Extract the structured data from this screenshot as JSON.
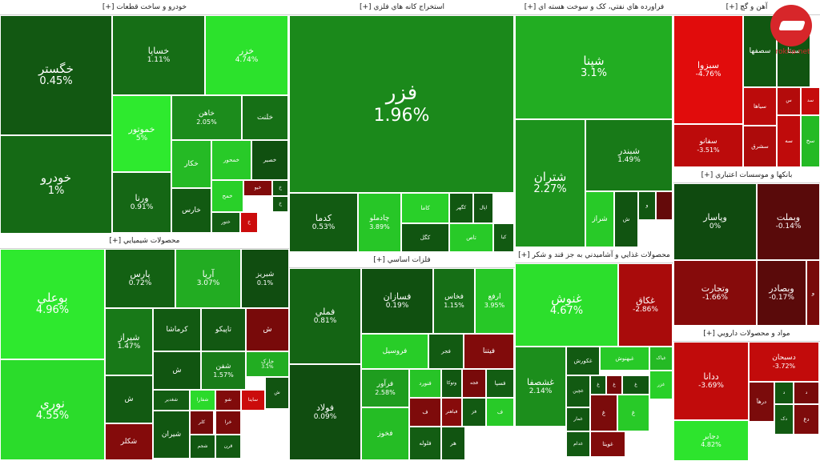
{
  "chart_data": {
    "type": "treemap",
    "title": "",
    "color_scale": {
      "positive": "#2eea2e",
      "negative": "#e80c0c",
      "neutral": "#0f4a0f"
    },
    "sectors": [
      {
        "name": "خودرو و ساخت قطعات [+]",
        "tiles": [
          {
            "name": "خگستر",
            "value": "0.45%",
            "pct": 0.45
          },
          {
            "name": "خودرو",
            "value": "1%",
            "pct": 1
          },
          {
            "name": "خساپا",
            "value": "1.11%",
            "pct": 1.11
          },
          {
            "name": "خزر",
            "value": "4.74%",
            "pct": 4.74
          },
          {
            "name": "خموتور",
            "value": "5%",
            "pct": 5
          },
          {
            "name": "خاهن",
            "value": "2.05%",
            "pct": 2.05
          },
          {
            "name": "خلنت",
            "value": "",
            "pct": 1.2
          },
          {
            "name": "ورنا",
            "value": "0.91%",
            "pct": 0.91
          },
          {
            "name": "خکار",
            "value": "",
            "pct": 3.5
          },
          {
            "name": "خمحور",
            "value": "",
            "pct": 4
          },
          {
            "name": "خصیر",
            "value": "",
            "pct": 0.2
          },
          {
            "name": "خمح",
            "value": "",
            "pct": 4.2
          },
          {
            "name": "خیو",
            "value": "",
            "pct": -1.5
          },
          {
            "name": "خ",
            "value": "",
            "pct": 0.3
          },
          {
            "name": "خارس",
            "value": "",
            "pct": 0.5
          },
          {
            "name": "ختور",
            "value": "",
            "pct": 0.6
          },
          {
            "name": "خ",
            "value": "",
            "pct": -4
          },
          {
            "name": "خ",
            "value": "",
            "pct": 0.4
          }
        ]
      },
      {
        "name": "استخراج کانه هاي فلزي [+]",
        "tiles": [
          {
            "name": "فزر",
            "value": "1.96%",
            "pct": 1.96
          },
          {
            "name": "کدما",
            "value": "0.53%",
            "pct": 0.53
          },
          {
            "name": "چادملو",
            "value": "3.89%",
            "pct": 3.89
          },
          {
            "name": "کاما",
            "value": "",
            "pct": 4.2
          },
          {
            "name": "کگهر",
            "value": "",
            "pct": 0.4
          },
          {
            "name": "اپال",
            "value": "",
            "pct": 0.3
          },
          {
            "name": "کگل",
            "value": "",
            "pct": 0.35
          },
          {
            "name": "تاص",
            "value": "",
            "pct": 4
          },
          {
            "name": "کبا",
            "value": "",
            "pct": 0.5
          }
        ]
      },
      {
        "name": "فراورده هاي نفتي، کک و سوخت هسته اي [+]",
        "tiles": [
          {
            "name": "شپنا",
            "value": "3.1%",
            "pct": 3.1
          },
          {
            "name": "شتران",
            "value": "2.27%",
            "pct": 2.27
          },
          {
            "name": "شبندر",
            "value": "1.49%",
            "pct": 1.49
          },
          {
            "name": "شراز",
            "value": "",
            "pct": 4
          },
          {
            "name": "ش",
            "value": "",
            "pct": 0.3
          },
          {
            "name": "و",
            "value": "",
            "pct": 0.4
          },
          {
            "name": "",
            "value": "",
            "pct": -0.5
          }
        ]
      },
      {
        "name": "آهن و گچ [+]",
        "tiles": [
          {
            "name": "سبزوا",
            "value": "-4.76%",
            "pct": -4.76
          },
          {
            "name": "سفانو",
            "value": "-3.51%",
            "pct": -3.51
          },
          {
            "name": "سصفها",
            "value": "",
            "pct": 0.4
          },
          {
            "name": "سیتا",
            "value": "",
            "pct": 0.3
          },
          {
            "name": "سیاها",
            "value": "",
            "pct": -3.5
          },
          {
            "name": "س",
            "value": "",
            "pct": -3.2
          },
          {
            "name": "سد",
            "value": "",
            "pct": -3.8
          },
          {
            "name": "سشرق",
            "value": "",
            "pct": -3
          },
          {
            "name": "سه",
            "value": "",
            "pct": -3.6
          },
          {
            "name": "سخ",
            "value": "",
            "pct": 3.5
          }
        ]
      },
      {
        "name": "محصولات شيميايي [+]",
        "tiles": [
          {
            "name": "بوعلي",
            "value": "4.96%",
            "pct": 4.96
          },
          {
            "name": "نوري",
            "value": "4.55%",
            "pct": 4.55
          },
          {
            "name": "پارس",
            "value": "0.72%",
            "pct": 0.72
          },
          {
            "name": "آریا",
            "value": "3.07%",
            "pct": 3.07
          },
          {
            "name": "شبریز",
            "value": "0.1%",
            "pct": 0.1
          },
          {
            "name": "شیراز",
            "value": "1.47%",
            "pct": 1.47
          },
          {
            "name": "کرماشا",
            "value": "",
            "pct": 0.5
          },
          {
            "name": "تاپیکو",
            "value": "",
            "pct": 0.45
          },
          {
            "name": "ش",
            "value": "",
            "pct": -1.2
          },
          {
            "name": "ش",
            "value": "",
            "pct": 0.5
          },
          {
            "name": "ش",
            "value": "",
            "pct": 0.35
          },
          {
            "name": "شفن",
            "value": "1.57%",
            "pct": 1.57
          },
          {
            "name": "خارک",
            "value": "3.1%",
            "pct": 3.1
          },
          {
            "name": "شغدیر",
            "value": "",
            "pct": 0.6
          },
          {
            "name": "شفارا",
            "value": "",
            "pct": 4.5
          },
          {
            "name": "شو",
            "value": "",
            "pct": -1.5
          },
          {
            "name": "ساینا",
            "value": "",
            "pct": -4
          },
          {
            "name": "ش",
            "value": "",
            "pct": 0.3
          },
          {
            "name": "شیران",
            "value": "",
            "pct": 0.4
          },
          {
            "name": "کلر",
            "value": "",
            "pct": -1.1
          },
          {
            "name": "خرا",
            "value": "",
            "pct": -1.3
          },
          {
            "name": "قرن",
            "value": "",
            "pct": 0.5
          },
          {
            "name": "شجم",
            "value": "",
            "pct": 0.4
          },
          {
            "name": "شکلر",
            "value": "",
            "pct": -1.6
          }
        ]
      },
      {
        "name": "فلزات اساسي [+]",
        "tiles": [
          {
            "name": "فملي",
            "value": "0.81%",
            "pct": 0.81
          },
          {
            "name": "فولاد",
            "value": "0.09%",
            "pct": 0.09
          },
          {
            "name": "فسازان",
            "value": "0.19%",
            "pct": 0.19
          },
          {
            "name": "فخاس",
            "value": "1.15%",
            "pct": 1.15
          },
          {
            "name": "ارفع",
            "value": "3.95%",
            "pct": 3.95
          },
          {
            "name": "فروسیل",
            "value": "",
            "pct": 4.1
          },
          {
            "name": "فجر",
            "value": "",
            "pct": 0.5
          },
          {
            "name": "فیتنا",
            "value": "",
            "pct": -1.5
          },
          {
            "name": "فرآور",
            "value": "2.58%",
            "pct": 2.58
          },
          {
            "name": "فنورد",
            "value": "",
            "pct": 3.8
          },
          {
            "name": "وتوکا",
            "value": "",
            "pct": 0.4
          },
          {
            "name": "فجه",
            "value": "",
            "pct": -1.2
          },
          {
            "name": "فسپا",
            "value": "",
            "pct": 0.6
          },
          {
            "name": "ف",
            "value": "",
            "pct": -1.4
          },
          {
            "name": "فباهنر",
            "value": "",
            "pct": -1.7
          },
          {
            "name": "فز",
            "value": "",
            "pct": 0.5
          },
          {
            "name": "ف",
            "value": "",
            "pct": 4
          },
          {
            "name": "فخوز",
            "value": "",
            "pct": 3.6
          },
          {
            "name": "فلوله",
            "value": "",
            "pct": 0.6
          },
          {
            "name": "هر",
            "value": "",
            "pct": 0.3
          }
        ]
      },
      {
        "name": "محصولات غذايي و آشاميدني به جز قند و شكر [+]",
        "tiles": [
          {
            "name": "غنوش",
            "value": "4.67%",
            "pct": 4.67
          },
          {
            "name": "غکاق",
            "value": "-2.86%",
            "pct": -2.86
          },
          {
            "name": "غشصفا",
            "value": "2.14%",
            "pct": 2.14
          },
          {
            "name": "غکورش",
            "value": "",
            "pct": 0.5
          },
          {
            "name": "غبهنوش",
            "value": "",
            "pct": 4
          },
          {
            "name": "غیاک",
            "value": "",
            "pct": 3.5
          },
          {
            "name": "غزر",
            "value": "",
            "pct": 4.2
          },
          {
            "name": "غچین",
            "value": "",
            "pct": 0.5
          },
          {
            "name": "غمار",
            "value": "",
            "pct": 0.4
          },
          {
            "name": "غدام",
            "value": "",
            "pct": 0.5
          },
          {
            "name": "غویتا",
            "value": "",
            "pct": -1.5
          },
          {
            "name": "غ",
            "value": "",
            "pct": 0.3
          },
          {
            "name": "غ",
            "value": "",
            "pct": -1.1
          },
          {
            "name": "غ",
            "value": "",
            "pct": 0.35
          },
          {
            "name": "غ",
            "value": "",
            "pct": -1.3
          },
          {
            "name": "غ",
            "value": "",
            "pct": 4
          }
        ]
      },
      {
        "name": "بانكها و موسسات اعتباري [+]",
        "tiles": [
          {
            "name": "وپاسار",
            "value": "0%",
            "pct": 0
          },
          {
            "name": "وبملت",
            "value": "-0.14%",
            "pct": -0.14
          },
          {
            "name": "وتجارت",
            "value": "-1.66%",
            "pct": -1.66
          },
          {
            "name": "وبصادر",
            "value": "-0.17%",
            "pct": -0.17
          },
          {
            "name": "و",
            "value": "",
            "pct": -1.2
          }
        ]
      },
      {
        "name": "مواد و محصولات دارويي [+]",
        "tiles": [
          {
            "name": "ددانا",
            "value": "-3.69%",
            "pct": -3.69
          },
          {
            "name": "دسبحان",
            "value": "-3.72%",
            "pct": -3.72
          },
          {
            "name": "درهآ",
            "value": "",
            "pct": -1.3
          },
          {
            "name": "دجابر",
            "value": "4.82%",
            "pct": 4.82
          },
          {
            "name": "د",
            "value": "",
            "pct": 0.4
          },
          {
            "name": "د",
            "value": "",
            "pct": -1.2
          },
          {
            "name": "دک",
            "value": "",
            "pct": 0.5
          },
          {
            "name": "دع",
            "value": "",
            "pct": -1.4
          }
        ]
      }
    ]
  }
}
